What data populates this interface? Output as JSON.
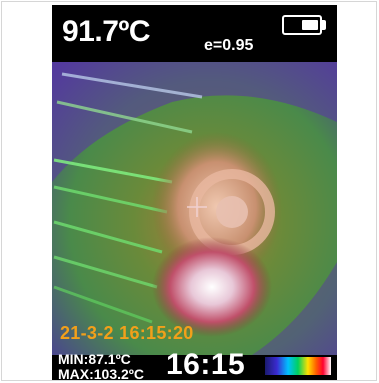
{
  "header": {
    "temperature": "91.7ºC",
    "emissivity": "e=0.95",
    "battery_icon": "battery-icon"
  },
  "image": {
    "timestamp": "21-3-2 16:15:20",
    "crosshair_icon": "crosshair-icon"
  },
  "footer": {
    "min": "MIN:87.1ºC",
    "max": "MAX:103.2ºC",
    "clock": "16:15",
    "palette_icon": "color-palette-bar"
  },
  "colors": {
    "datetime": "#f2a01a",
    "text": "#ffffff",
    "background": "#000000"
  }
}
